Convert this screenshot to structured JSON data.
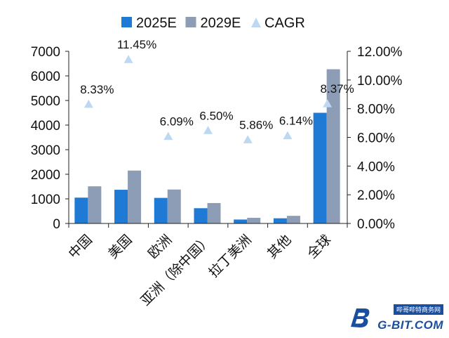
{
  "chart_data": {
    "type": "bar",
    "categories": [
      "中国",
      "美国",
      "欧洲",
      "亚洲（除中国）",
      "拉丁美洲",
      "其他",
      "全球"
    ],
    "series": [
      {
        "name": "2025E",
        "values": [
          1050,
          1370,
          1040,
          620,
          160,
          210,
          4500
        ],
        "color": "#1f7ad6",
        "axis": "left"
      },
      {
        "name": "2029E",
        "values": [
          1510,
          2150,
          1380,
          830,
          230,
          310,
          6270
        ],
        "color": "#8c9db5",
        "axis": "left"
      },
      {
        "name": "CAGR",
        "values": [
          8.33,
          11.45,
          6.09,
          6.5,
          5.86,
          6.14,
          8.37
        ],
        "color": "#bcd8f2",
        "axis": "right",
        "marker": "triangle"
      }
    ],
    "data_labels": [
      "8.33%",
      "11.45%",
      "6.09%",
      "6.50%",
      "5.86%",
      "6.14%",
      "8.37%"
    ],
    "left_ticks": [
      "0",
      "1000",
      "2000",
      "3000",
      "4000",
      "5000",
      "6000",
      "7000"
    ],
    "right_ticks": [
      "0.00%",
      "2.00%",
      "4.00%",
      "6.00%",
      "8.00%",
      "10.00%",
      "12.00%"
    ],
    "ylim_left": [
      0,
      7000
    ],
    "ylim_right": [
      0,
      12
    ],
    "grid": false,
    "legend_position": "top"
  },
  "watermark": {
    "top_text": "哔哥哔特商务网",
    "bottom_text": "G-BIT.COM",
    "logo_letter": "B"
  }
}
